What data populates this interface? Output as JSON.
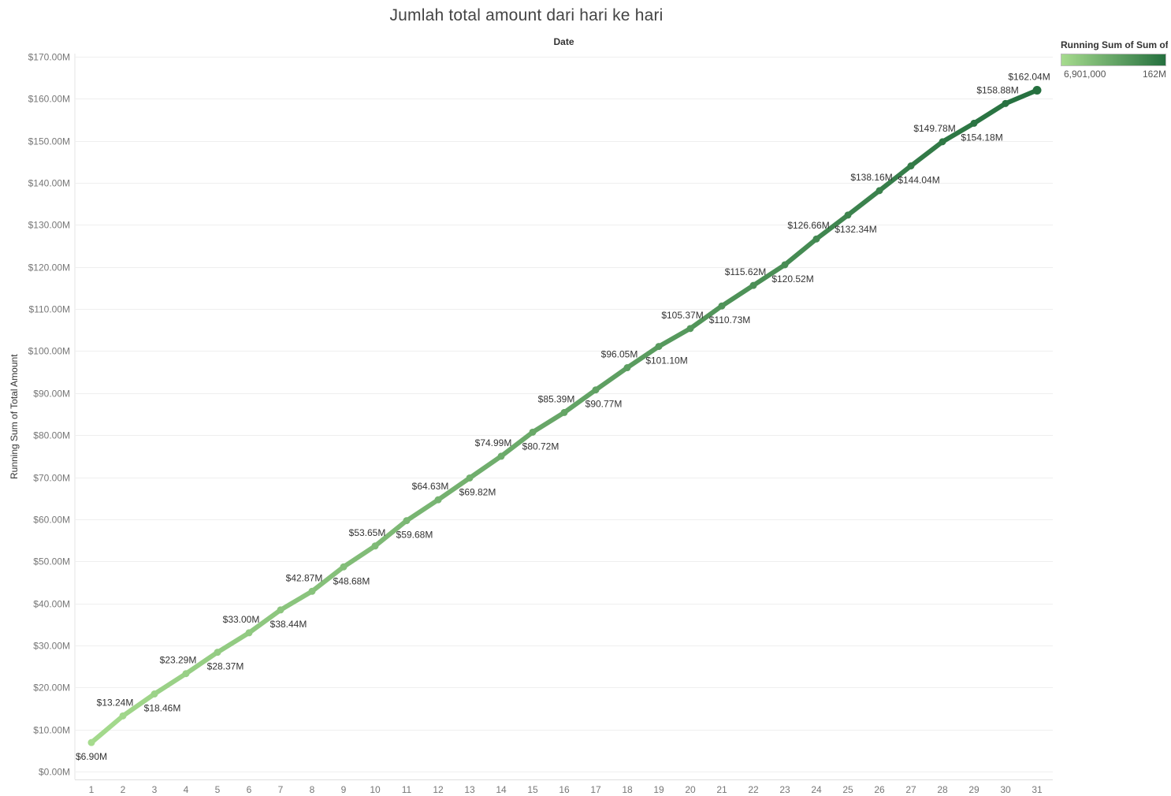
{
  "chart_data": {
    "type": "line",
    "title": "Jumlah total amount dari hari ke hari",
    "xlabel": "Date",
    "ylabel": "Running Sum of Total Amount",
    "x": [
      1,
      2,
      3,
      4,
      5,
      6,
      7,
      8,
      9,
      10,
      11,
      12,
      13,
      14,
      15,
      16,
      17,
      18,
      19,
      20,
      21,
      22,
      23,
      24,
      25,
      26,
      27,
      28,
      29,
      30,
      31
    ],
    "series": [
      {
        "values": [
          6.9,
          13.24,
          18.46,
          23.29,
          28.37,
          33.0,
          38.44,
          42.87,
          48.68,
          53.65,
          59.68,
          64.63,
          69.82,
          74.99,
          80.72,
          85.39,
          90.77,
          96.05,
          101.1,
          105.37,
          110.73,
          115.62,
          120.52,
          126.66,
          132.34,
          138.16,
          144.04,
          149.78,
          154.18,
          158.88,
          162.04
        ],
        "labels": [
          "$6.90M",
          "$13.24M",
          "$18.46M",
          "$23.29M",
          "$28.37M",
          "$33.00M",
          "$38.44M",
          "$42.87M",
          "$48.68M",
          "$53.65M",
          "$59.68M",
          "$64.63M",
          "$69.82M",
          "$74.99M",
          "$80.72M",
          "$85.39M",
          "$90.77M",
          "$96.05M",
          "$101.10M",
          "$105.37M",
          "$110.73M",
          "$115.62M",
          "$120.52M",
          "$126.66M",
          "$132.34M",
          "$138.16M",
          "$144.04M",
          "$149.78M",
          "$154.18M",
          "$158.88M",
          "$162.04M"
        ]
      }
    ],
    "unit": "M",
    "ylim": [
      0,
      170
    ],
    "yticks": [
      0,
      10,
      20,
      30,
      40,
      50,
      60,
      70,
      80,
      90,
      100,
      110,
      120,
      130,
      140,
      150,
      160,
      170
    ],
    "ytick_labels": [
      "$0.00M",
      "$10.00M",
      "$20.00M",
      "$30.00M",
      "$40.00M",
      "$50.00M",
      "$60.00M",
      "$70.00M",
      "$80.00M",
      "$90.00M",
      "$100.00M",
      "$110.00M",
      "$120.00M",
      "$130.00M",
      "$140.00M",
      "$150.00M",
      "$160.00M",
      "$170.00M"
    ],
    "grid": true,
    "legend": {
      "title": "Running Sum of Sum of ..",
      "min_label": "6,901,000",
      "max_label": "162M",
      "placement": "top-right",
      "color_low": "#a6db8e",
      "color_high": "#25703f"
    }
  }
}
